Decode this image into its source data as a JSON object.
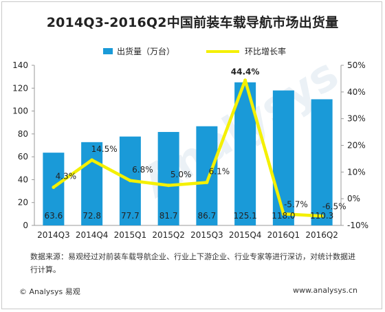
{
  "title": "2014Q3-2016Q2中国前装车载导航市场出货量",
  "legend": {
    "bar_label": "出货量（万台）",
    "line_label": "环比增长率"
  },
  "watermark": "Analysys",
  "note": "数据来源：易观经过对前装车载导航企业、行业上下游企业、行业专家等进行深访，对统计数据进行计算。",
  "footer": {
    "left": "© Analysys 易观",
    "right": "www.analysys.cn"
  },
  "colors": {
    "bar": "#1a9ad8",
    "line": "#f4f000",
    "axis": "#999999",
    "text": "#222222"
  },
  "chart_data": {
    "type": "bar",
    "categories": [
      "2014Q3",
      "2014Q4",
      "2015Q1",
      "2015Q2",
      "2015Q3",
      "2015Q4",
      "2016Q1",
      "2016Q2"
    ],
    "series": [
      {
        "name": "出货量（万台）",
        "type": "bar",
        "axis": "left",
        "values": [
          63.6,
          72.8,
          77.7,
          81.7,
          86.7,
          125.1,
          118.0,
          110.3
        ],
        "labels": [
          "63.6",
          "72.8",
          "77.7",
          "81.7",
          "86.7",
          "125.1",
          "118.0",
          "110.3"
        ]
      },
      {
        "name": "环比增长率",
        "type": "line",
        "axis": "right",
        "values": [
          4.3,
          14.5,
          6.8,
          5.0,
          6.1,
          44.4,
          -5.7,
          -6.5
        ],
        "labels": [
          "4.3%",
          "14.5%",
          "6.8%",
          "5.0%",
          "6.1%",
          "44.4%",
          "-5.7%",
          "-6.5%"
        ]
      }
    ],
    "y_left": {
      "ylim": [
        0,
        140
      ],
      "ticks": [
        "0",
        "20",
        "40",
        "60",
        "80",
        "100",
        "120",
        "140"
      ]
    },
    "y_right": {
      "ylim": [
        -10,
        50
      ],
      "ticks": [
        "-10%",
        "0%",
        "10%",
        "20%",
        "30%",
        "40%",
        "50%"
      ]
    },
    "legend_position": "top-center",
    "grid": false
  }
}
